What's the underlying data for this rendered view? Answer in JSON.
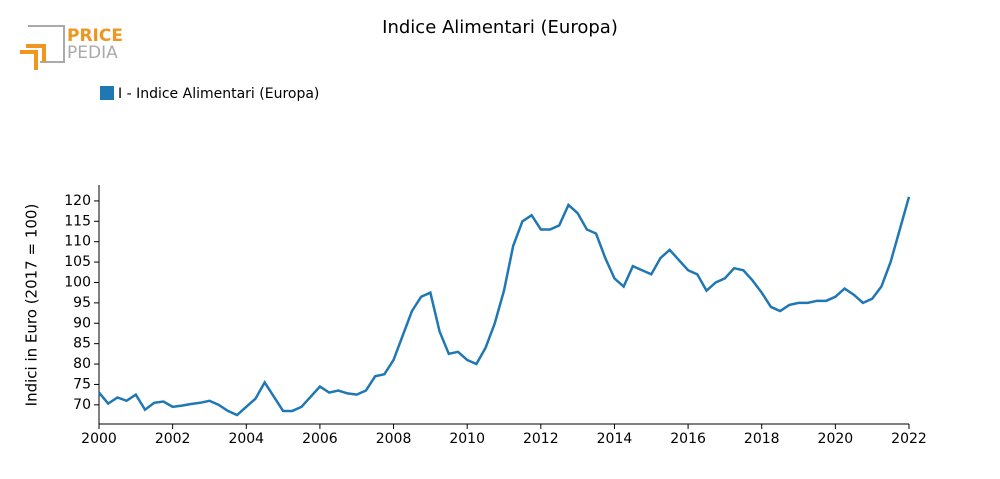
{
  "logo": {
    "line1": "PRICE",
    "line2": "PEDIA"
  },
  "chart_data": {
    "type": "line",
    "title": "Indice Alimentari (Europa)",
    "ylabel": "Indici in Euro (2017 = 100)",
    "legend": "top-left",
    "xlim": [
      2000,
      2022
    ],
    "xticks": [
      2000,
      2002,
      2004,
      2006,
      2008,
      2010,
      2012,
      2014,
      2016,
      2018,
      2020,
      2022
    ],
    "ylim": [
      65.3,
      123.9
    ],
    "yticks": [
      70,
      75,
      80,
      85,
      90,
      95,
      100,
      105,
      110,
      115,
      120
    ],
    "x": [
      2000,
      2000.25,
      2000.5,
      2000.75,
      2001,
      2001.25,
      2001.5,
      2001.75,
      2002,
      2002.25,
      2002.5,
      2002.75,
      2003,
      2003.25,
      2003.5,
      2003.75,
      2004,
      2004.25,
      2004.5,
      2004.75,
      2005,
      2005.25,
      2005.5,
      2005.75,
      2006,
      2006.25,
      2006.5,
      2006.75,
      2007,
      2007.25,
      2007.5,
      2007.75,
      2008,
      2008.25,
      2008.5,
      2008.75,
      2009,
      2009.25,
      2009.5,
      2009.75,
      2010,
      2010.25,
      2010.5,
      2010.75,
      2011,
      2011.25,
      2011.5,
      2011.75,
      2012,
      2012.25,
      2012.5,
      2012.75,
      2013,
      2013.25,
      2013.5,
      2013.75,
      2014,
      2014.25,
      2014.5,
      2014.75,
      2015,
      2015.25,
      2015.5,
      2015.75,
      2016,
      2016.25,
      2016.5,
      2016.75,
      2017,
      2017.25,
      2017.5,
      2017.75,
      2018,
      2018.25,
      2018.5,
      2018.75,
      2019,
      2019.25,
      2019.5,
      2019.75,
      2020,
      2020.25,
      2020.5,
      2020.75,
      2021,
      2021.25,
      2021.5,
      2021.75,
      2022
    ],
    "series": [
      {
        "name": "I - Indice Alimentari (Europa)",
        "color": "#1f77b4",
        "values": [
          73,
          70.3,
          71.8,
          71,
          72.5,
          68.8,
          70.5,
          70.8,
          69.5,
          69.8,
          70.2,
          70.5,
          71,
          70,
          68.5,
          67.5,
          69.5,
          71.5,
          75.5,
          72,
          68.5,
          68.5,
          69.5,
          72,
          74.5,
          73,
          73.5,
          72.8,
          72.5,
          73.5,
          77,
          77.5,
          81,
          87,
          93,
          96.5,
          97.5,
          88,
          82.5,
          83,
          81,
          80,
          84,
          90,
          98,
          109,
          115,
          116.5,
          113,
          113,
          114,
          119,
          117,
          113,
          112,
          106,
          101,
          99,
          104,
          103,
          102,
          106,
          108,
          105.5,
          103,
          102,
          98,
          100,
          101,
          103.5,
          103,
          100.5,
          97.5,
          94,
          93,
          94.5,
          95,
          95,
          95.5,
          95.5,
          96.5,
          98.5,
          97,
          95,
          96,
          99,
          105,
          113,
          121
        ]
      }
    ]
  }
}
